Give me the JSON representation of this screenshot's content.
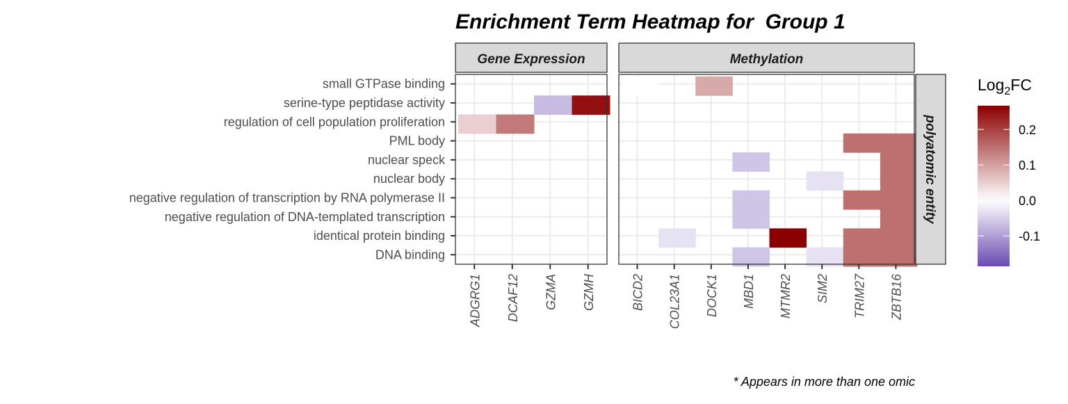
{
  "chart_data": {
    "type": "heatmap",
    "title": "Enrichment Term Heatmap for  Group 1",
    "footnote": "* Appears in more than one omic",
    "row_strip": "polyatomic entity",
    "rows": [
      "small GTPase binding",
      "serine-type peptidase activity",
      "regulation of cell population proliferation",
      "PML body",
      "nuclear speck",
      "nuclear body",
      "negative regulation of transcription by RNA polymerase II",
      "negative regulation of DNA-templated transcription",
      "identical protein binding",
      "DNA binding"
    ],
    "panels": [
      {
        "name": "Gene Expression",
        "columns": [
          "ADGRG1",
          "DCAF12",
          "GZMA",
          "GZMH"
        ],
        "cells": [
          {
            "row": "serine-type peptidase activity",
            "col": "GZMA",
            "value": -0.07
          },
          {
            "row": "serine-type peptidase activity",
            "col": "GZMH",
            "value": 0.25
          },
          {
            "row": "regulation of cell population proliferation",
            "col": "ADGRG1",
            "value": 0.05
          },
          {
            "row": "regulation of cell population proliferation",
            "col": "DCAF12",
            "value": 0.14
          }
        ]
      },
      {
        "name": "Methylation",
        "columns": [
          "BICD2",
          "COL23A1",
          "DOCK1",
          "MBD1",
          "MTMR2",
          "SIM2",
          "TRIM27",
          "ZBTB16"
        ],
        "cells": [
          {
            "row": "small GTPase binding",
            "col": "BICD2",
            "value": 0.0
          },
          {
            "row": "small GTPase binding",
            "col": "DOCK1",
            "value": 0.09
          },
          {
            "row": "PML body",
            "col": "TRIM27",
            "value": 0.15
          },
          {
            "row": "PML body",
            "col": "ZBTB16",
            "value": 0.15
          },
          {
            "row": "nuclear speck",
            "col": "MBD1",
            "value": -0.06
          },
          {
            "row": "nuclear speck",
            "col": "ZBTB16",
            "value": 0.15
          },
          {
            "row": "nuclear body",
            "col": "SIM2",
            "value": -0.03
          },
          {
            "row": "nuclear body",
            "col": "ZBTB16",
            "value": 0.15
          },
          {
            "row": "negative regulation of transcription by RNA polymerase II",
            "col": "MBD1",
            "value": -0.06
          },
          {
            "row": "negative regulation of transcription by RNA polymerase II",
            "col": "TRIM27",
            "value": 0.15
          },
          {
            "row": "negative regulation of transcription by RNA polymerase II",
            "col": "ZBTB16",
            "value": 0.15
          },
          {
            "row": "negative regulation of DNA-templated transcription",
            "col": "MBD1",
            "value": -0.06
          },
          {
            "row": "negative regulation of DNA-templated transcription",
            "col": "ZBTB16",
            "value": 0.15
          },
          {
            "row": "identical protein binding",
            "col": "COL23A1",
            "value": -0.03
          },
          {
            "row": "identical protein binding",
            "col": "MTMR2",
            "value": 0.27
          },
          {
            "row": "identical protein binding",
            "col": "TRIM27",
            "value": 0.15
          },
          {
            "row": "identical protein binding",
            "col": "ZBTB16",
            "value": 0.15
          },
          {
            "row": "DNA binding",
            "col": "MBD1",
            "value": -0.06
          },
          {
            "row": "DNA binding",
            "col": "SIM2",
            "value": -0.03
          },
          {
            "row": "DNA binding",
            "col": "TRIM27",
            "value": 0.15
          },
          {
            "row": "DNA binding",
            "col": "ZBTB16",
            "value": 0.15
          }
        ]
      }
    ],
    "legend": {
      "title_main": "Log",
      "title_sub": "2",
      "title_tail": "FC",
      "ticks": [
        0.2,
        0.1,
        0.0,
        -0.1
      ],
      "tick_labels": [
        "0.2",
        "0.1",
        "0.0",
        "-0.1"
      ],
      "range": [
        -0.186,
        0.267
      ],
      "colors": {
        "low": "#6a4bb2",
        "mid": "#ffffff",
        "high": "#8b0000"
      },
      "placement": "right"
    },
    "grid": true
  }
}
